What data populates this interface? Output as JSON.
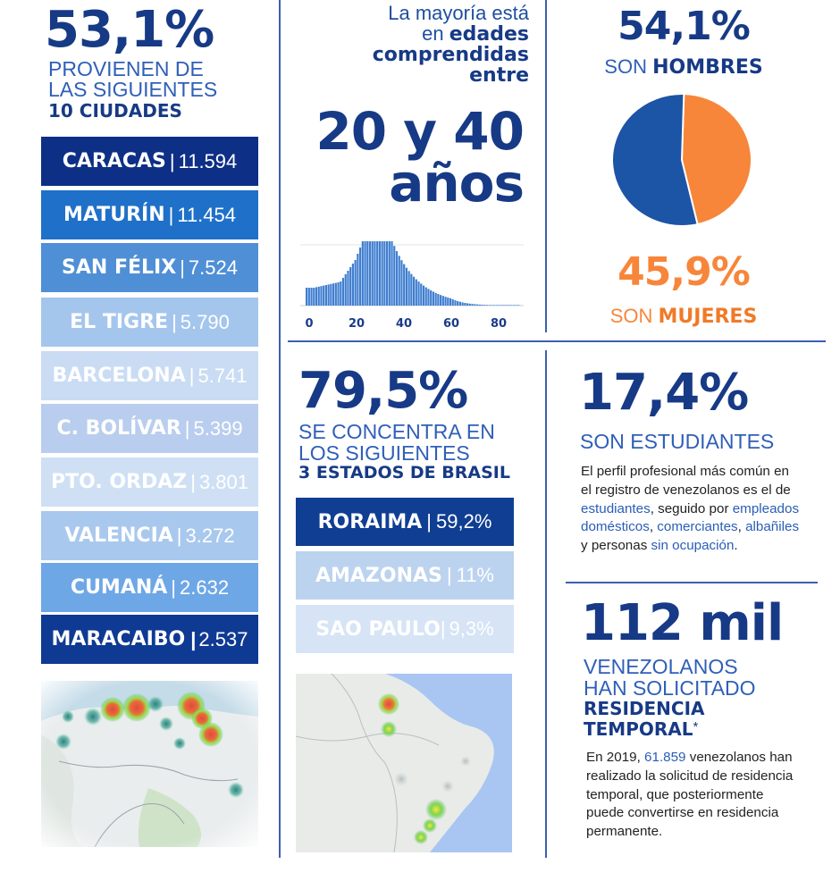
{
  "cities_block": {
    "percent": "53,1%",
    "line1": "PROVIENEN DE",
    "line2": "LAS SIGUIENTES",
    "line3": "10 CIUDADES",
    "cities": [
      {
        "name": "CARACAS",
        "value": "11.594",
        "bg": "#0e2f86",
        "fg": "#ffffff"
      },
      {
        "name": "MATURÍN",
        "value": "11.454",
        "bg": "#1f70c8",
        "fg": "#ffffff"
      },
      {
        "name": "SAN FÉLIX",
        "value": "7.524",
        "bg": "#4f8fd6",
        "fg": "#ffffff"
      },
      {
        "name": "EL TIGRE",
        "value": "5.790",
        "bg": "#a4c6ec",
        "fg": "#ffffff"
      },
      {
        "name": "BARCELONA",
        "value": "5.741",
        "bg": "#c9dcf3",
        "fg": "#ffffff"
      },
      {
        "name": "C. BOLÍVAR",
        "value": "5.399",
        "bg": "#b9cdee",
        "fg": "#ffffff"
      },
      {
        "name": "PTO. ORDAZ",
        "value": "3.801",
        "bg": "#cfe0f5",
        "fg": "#ffffff"
      },
      {
        "name": "VALENCIA",
        "value": "3.272",
        "bg": "#a9c8ee",
        "fg": "#ffffff"
      },
      {
        "name": "CUMANÁ",
        "value": "2.632",
        "bg": "#6ea7e6",
        "fg": "#ffffff"
      },
      {
        "name": "MARACAIBO",
        "value": "2.537",
        "bg": "#0f3a93",
        "fg": "#ffffff",
        "sep": "|"
      }
    ]
  },
  "age_block": {
    "intro1": "La mayoría está",
    "intro2_pre": "en",
    "intro2_bold": "edades",
    "intro3": "comprendidas",
    "intro4": "entre",
    "range_line1": "20 y 40",
    "range_line2": "años",
    "ticks": [
      "0",
      "20",
      "40",
      "60",
      "80"
    ]
  },
  "gender_block": {
    "men_percent": "54,1%",
    "men_pre": "SON",
    "men_bold": "HOMBRES",
    "women_percent": "45,9%",
    "women_pre": "SON",
    "women_bold": "MUJERES",
    "men_color": "#1c54a6",
    "women_color": "#f7863a",
    "men_value": 54.1,
    "women_value": 45.9
  },
  "states_block": {
    "percent": "79,5%",
    "line1": "SE CONCENTRA EN",
    "line2": "LOS SIGUIENTES",
    "line3": "3 ESTADOS DE BRASIL",
    "states": [
      {
        "name": "RORAIMA",
        "value": "59,2%",
        "bg": "#103e93",
        "fg": "#ffffff"
      },
      {
        "name": "AMAZONAS",
        "value": "11%",
        "bg": "#bcd3ef",
        "fg": "#ffffff"
      },
      {
        "name": "SAO PAULO",
        "value": "9,3%",
        "bg": "#d6e4f6",
        "fg": "#ffffff"
      }
    ]
  },
  "students_block": {
    "percent": "17,4%",
    "caption": "SON ESTUDIANTES",
    "p1": "El perfil profesional más común en",
    "p2": "el registro de venezolanos es el de",
    "p3_hl": "estudiantes",
    "p3_mid": ", seguido por",
    "p3_hl2": "empleados",
    "p4_hl": "domésticos",
    "p4_sep1": ",",
    "p4_hl2": "comerciantes",
    "p4_sep2": ",",
    "p4_hl3": "albañiles",
    "p5_pre": "y personas",
    "p5_hl": "sin ocupación",
    "p5_end": "."
  },
  "residence_block": {
    "number": "112 mil",
    "line1": "VENEZOLANOS",
    "line2": "HAN SOLICITADO",
    "line3": "RESIDENCIA",
    "line4": "TEMPORAL",
    "asterisk": "*",
    "p1_pre": "En 2019,",
    "p1_hl": "61.859",
    "p1_post": "venezolanos han",
    "p2": "realizado la solicitud de residencia",
    "p3": "temporal, que posteriormente",
    "p4": "puede convertirse en residencia",
    "p5": "permanente."
  }
}
